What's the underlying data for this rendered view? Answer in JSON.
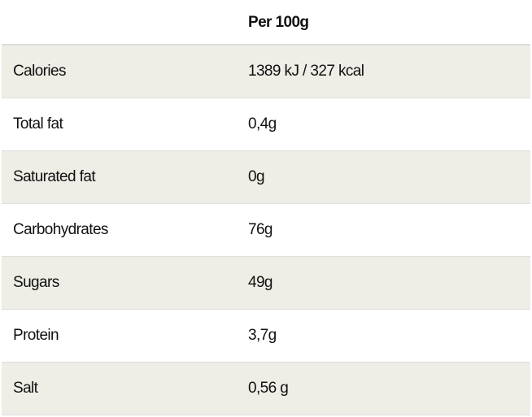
{
  "header": {
    "label_col": "",
    "value_col": "Per 100g"
  },
  "rows": [
    {
      "label": "Calories",
      "value": "1389 kJ / 327 kcal"
    },
    {
      "label": "Total fat",
      "value": "0,4g"
    },
    {
      "label": "Saturated fat",
      "value": "0g"
    },
    {
      "label": "Carbohydrates",
      "value": "76g"
    },
    {
      "label": "Sugars",
      "value": "49g"
    },
    {
      "label": "Protein",
      "value": "3,7g"
    },
    {
      "label": "Salt",
      "value": "0,56 g"
    }
  ],
  "colors": {
    "stripe": "#eeede6",
    "border": "#dcdcdc"
  }
}
